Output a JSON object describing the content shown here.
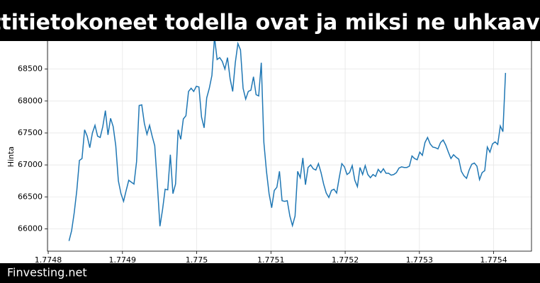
{
  "chart_data": {
    "type": "line",
    "title": "nttitietokoneet todella ovat ja miksi ne uhkaavat",
    "ylabel": "Hinta",
    "footer": "Finvesting.net",
    "xlim": [
      1.774799,
      1.775451
    ],
    "xticks": [
      1.7748,
      1.7749,
      1.775,
      1.7751,
      1.7752,
      1.7753,
      1.7754
    ],
    "ylim": [
      65650,
      69050
    ],
    "yticks": [
      66000,
      66500,
      67000,
      67500,
      68000,
      68500
    ],
    "grid": true,
    "x": [
      1.774828,
      1.7748315,
      1.774835,
      1.7748385,
      1.774842,
      1.7748455,
      1.774849,
      1.7748525,
      1.774856,
      1.7748595,
      1.774863,
      1.7748665,
      1.77487,
      1.7748735,
      1.774877,
      1.7748805,
      1.774884,
      1.7748875,
      1.774891,
      1.7748945,
      1.774898,
      1.7749015,
      1.774905,
      1.7749085,
      1.774912,
      1.7749155,
      1.774919,
      1.7749225,
      1.774926,
      1.7749295,
      1.774933,
      1.7749365,
      1.77494,
      1.7749435,
      1.774947,
      1.7749505,
      1.774954,
      1.7749575,
      1.774961,
      1.7749645,
      1.774968,
      1.7749715,
      1.774975,
      1.7749785,
      1.774982,
      1.7749855,
      1.774989,
      1.7749925,
      1.774996,
      1.7749995,
      1.775003,
      1.7750065,
      1.77501,
      1.7750135,
      1.775017,
      1.7750205,
      1.775024,
      1.7750275,
      1.775031,
      1.7750345,
      1.775038,
      1.7750415,
      1.775045,
      1.7750485,
      1.775052,
      1.7750555,
      1.775059,
      1.7750625,
      1.775066,
      1.7750695,
      1.775073,
      1.7750765,
      1.77508,
      1.7750835,
      1.775087,
      1.7750905,
      1.775094,
      1.7750975,
      1.775101,
      1.7751045,
      1.775108,
      1.7751115,
      1.775115,
      1.7751185,
      1.775122,
      1.7751255,
      1.775129,
      1.7751325,
      1.775136,
      1.7751395,
      1.775143,
      1.7751465,
      1.77515,
      1.7751535,
      1.775157,
      1.7751605,
      1.775164,
      1.7751675,
      1.775171,
      1.7751745,
      1.775178,
      1.7751815,
      1.775185,
      1.7751885,
      1.775192,
      1.7751955,
      1.775199,
      1.7752025,
      1.775206,
      1.7752095,
      1.775213,
      1.7752165,
      1.77522,
      1.7752235,
      1.775227,
      1.7752305,
      1.775234,
      1.7752375,
      1.775241,
      1.7752445,
      1.775248,
      1.7752515,
      1.775255,
      1.7752585,
      1.775262,
      1.7752655,
      1.775269,
      1.7752725,
      1.775276,
      1.7752795,
      1.775283,
      1.7752865,
      1.77529,
      1.7752935,
      1.775297,
      1.7753005,
      1.775304,
      1.7753075,
      1.775311,
      1.7753145,
      1.775318,
      1.7753215,
      1.775325,
      1.7753285,
      1.775332,
      1.7753355,
      1.775339,
      1.7753425,
      1.775346,
      1.7753495,
      1.775353,
      1.7753565,
      1.77536,
      1.7753635,
      1.775367,
      1.7753705,
      1.775374,
      1.7753775,
      1.775381,
      1.7753845,
      1.775388,
      1.7753915,
      1.775395,
      1.7753985,
      1.775402,
      1.7754055,
      1.775409,
      1.7754125,
      1.775416
    ],
    "series": [
      {
        "color": "#1f77b4",
        "values": [
          65810,
          65970,
          66250,
          66600,
          67070,
          67100,
          67550,
          67450,
          67270,
          67500,
          67620,
          67450,
          67430,
          67600,
          67850,
          67470,
          67730,
          67600,
          67300,
          66750,
          66550,
          66430,
          66600,
          66760,
          66730,
          66700,
          67050,
          67930,
          67940,
          67650,
          67480,
          67620,
          67450,
          67300,
          66700,
          66040,
          66300,
          66620,
          66610,
          67160,
          66550,
          66700,
          67550,
          67400,
          67720,
          67770,
          68150,
          68200,
          68150,
          68230,
          68220,
          67750,
          67580,
          68050,
          68200,
          68400,
          69000,
          68650,
          68680,
          68620,
          68500,
          68680,
          68350,
          68150,
          68600,
          68900,
          68800,
          68200,
          68030,
          68150,
          68170,
          68380,
          68100,
          68080,
          68600,
          67350,
          66900,
          66550,
          66330,
          66600,
          66650,
          66900,
          66440,
          66430,
          66440,
          66200,
          66050,
          66200,
          66900,
          66800,
          67110,
          66690,
          66960,
          67000,
          66940,
          66920,
          67020,
          66880,
          66700,
          66560,
          66490,
          66600,
          66620,
          66560,
          66800,
          67020,
          66970,
          66850,
          66880,
          66990,
          66760,
          66660,
          66960,
          66850,
          66990,
          66850,
          66800,
          66850,
          66820,
          66930,
          66880,
          66940,
          66870,
          66870,
          66840,
          66850,
          66880,
          66950,
          66970,
          66960,
          66960,
          66980,
          67140,
          67100,
          67080,
          67200,
          67150,
          67350,
          67430,
          67330,
          67280,
          67270,
          67250,
          67350,
          67390,
          67310,
          67200,
          67100,
          67160,
          67120,
          67090,
          66900,
          66830,
          66790,
          66920,
          67010,
          67030,
          66980,
          66770,
          66880,
          66910,
          67280,
          67200,
          67330,
          67360,
          67320,
          67610,
          67520,
          68440
        ]
      }
    ]
  }
}
